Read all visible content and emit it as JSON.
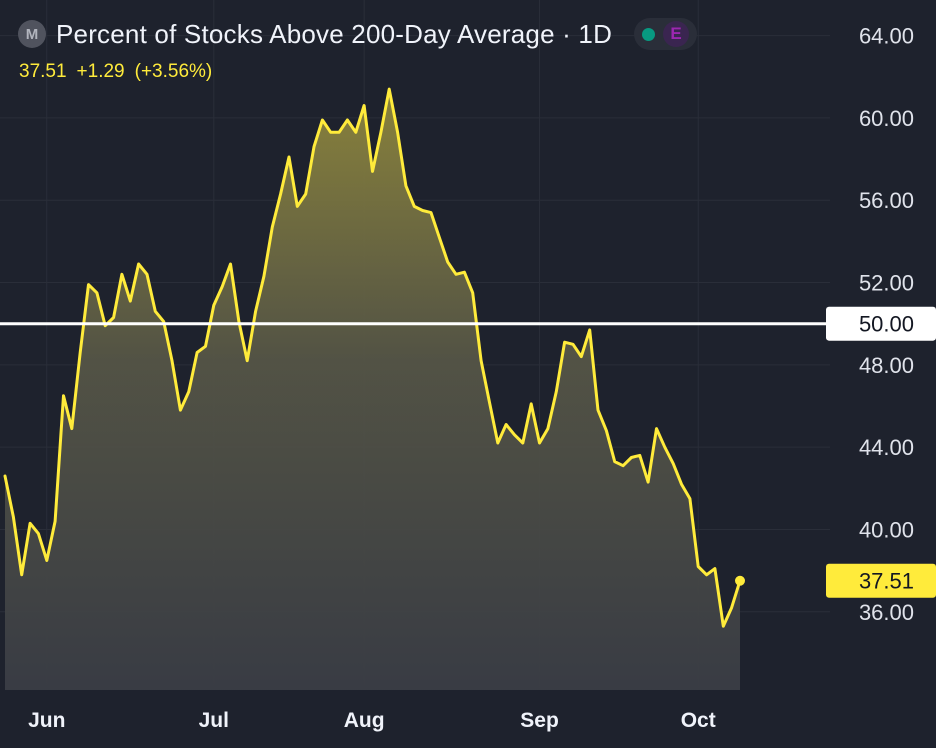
{
  "header": {
    "symbol_badge": "M",
    "title": "Percent of Stocks Above 200-Day Average · 1D",
    "pill_label": "E"
  },
  "quote": {
    "last": "37.51",
    "change": "+1.29",
    "change_pct": "(+3.56%)"
  },
  "colors": {
    "background": "#1e222d",
    "line": "#ffeb3b",
    "reference": "#ffffff",
    "grid": "#2a2e39"
  },
  "chart_data": {
    "type": "area",
    "title": "Percent of Stocks Above 200-Day Average · 1D",
    "ylim": [
      32.2,
      65
    ],
    "yticks": [
      "64.00",
      "60.00",
      "56.00",
      "52.00",
      "48.00",
      "44.00",
      "40.00",
      "36.00"
    ],
    "xticks": [
      "Jun",
      "Jul",
      "Aug",
      "Sep",
      "Oct"
    ],
    "xtick_index": [
      5,
      25,
      43,
      64,
      83
    ],
    "reference_line": {
      "value": 50.0,
      "label": "50.00"
    },
    "last_value": {
      "value": 37.51,
      "label": "37.51"
    },
    "series": [
      {
        "name": "Percent of Stocks Above 200-Day Average",
        "values": [
          42.6,
          40.6,
          37.8,
          40.3,
          39.8,
          38.5,
          40.4,
          46.5,
          44.9,
          48.6,
          51.9,
          51.5,
          49.9,
          50.3,
          52.4,
          51.1,
          52.9,
          52.4,
          50.6,
          50.1,
          48.2,
          45.8,
          46.7,
          48.6,
          48.9,
          50.9,
          51.8,
          52.9,
          50.1,
          48.2,
          50.6,
          52.3,
          54.7,
          56.3,
          58.1,
          55.7,
          56.3,
          58.6,
          59.9,
          59.3,
          59.3,
          59.9,
          59.3,
          60.6,
          57.4,
          59.3,
          61.4,
          59.3,
          56.7,
          55.7,
          55.5,
          55.4,
          54.2,
          53.0,
          52.4,
          52.5,
          51.5,
          48.2,
          46.2,
          44.2,
          45.1,
          44.6,
          44.2,
          46.1,
          44.2,
          44.9,
          46.7,
          49.1,
          49.0,
          48.4,
          49.7,
          45.8,
          44.8,
          43.3,
          43.1,
          43.5,
          43.6,
          42.3,
          44.9,
          44.0,
          43.2,
          42.2,
          41.5,
          38.2,
          37.8,
          38.1,
          35.3,
          36.2,
          37.51
        ]
      }
    ]
  }
}
